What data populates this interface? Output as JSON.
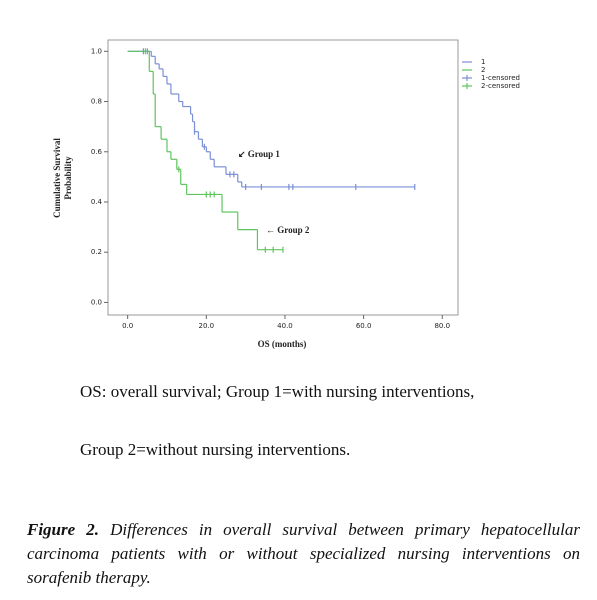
{
  "chart_data": {
    "type": "km-step",
    "xlabel": "OS (months)",
    "ylabel": [
      "Cumulative Survival",
      "Probability"
    ],
    "xlim": [
      -5,
      84
    ],
    "ylim": [
      -0.05,
      1.045
    ],
    "xticks": [
      {
        "value": 0,
        "label": "0.0"
      },
      {
        "value": 20,
        "label": "20.0"
      },
      {
        "value": 40,
        "label": "40.0"
      },
      {
        "value": 60,
        "label": "60.0"
      },
      {
        "value": 80,
        "label": "80.0"
      }
    ],
    "yticks": [
      {
        "value": 0,
        "label": "0.0"
      },
      {
        "value": 0.2,
        "label": "0.2"
      },
      {
        "value": 0.4,
        "label": "0.4"
      },
      {
        "value": 0.6,
        "label": "0.6"
      },
      {
        "value": 0.8,
        "label": "0.8"
      },
      {
        "value": 1,
        "label": "1.0"
      }
    ],
    "series": [
      {
        "name": "1",
        "color": "#7b8fd6",
        "kind": "step",
        "x": [
          0,
          6,
          7,
          8,
          9,
          10,
          11,
          13,
          14,
          16,
          16.5,
          17,
          18,
          19,
          20,
          21,
          22,
          25,
          28,
          29,
          73
        ],
        "values": [
          1,
          0.98,
          0.95,
          0.93,
          0.9,
          0.87,
          0.83,
          0.8,
          0.78,
          0.75,
          0.72,
          0.68,
          0.65,
          0.62,
          0.6,
          0.57,
          0.54,
          0.51,
          0.48,
          0.46,
          0.46
        ]
      },
      {
        "name": "2",
        "color": "#5fc45f",
        "kind": "step",
        "x": [
          0,
          5.5,
          6.5,
          7,
          8.5,
          10,
          11,
          12.5,
          13.5,
          15,
          24,
          28,
          33,
          39.5
        ],
        "values": [
          1,
          0.92,
          0.83,
          0.7,
          0.65,
          0.6,
          0.57,
          0.53,
          0.47,
          0.43,
          0.36,
          0.29,
          0.21,
          0.21
        ]
      },
      {
        "name": "1-censored",
        "color": "#7b8fd6",
        "kind": "censor",
        "x": [
          4,
          5,
          17,
          19.5,
          26,
          27,
          30,
          34,
          41,
          42,
          58,
          73
        ],
        "values": [
          1,
          1,
          0.68,
          0.62,
          0.51,
          0.51,
          0.46,
          0.46,
          0.46,
          0.46,
          0.46,
          0.46
        ]
      },
      {
        "name": "2-censored",
        "color": "#5fc45f",
        "kind": "censor",
        "x": [
          4.5,
          13,
          20,
          21,
          22,
          35,
          37,
          39.5
        ],
        "values": [
          1,
          0.53,
          0.43,
          0.43,
          0.43,
          0.21,
          0.21,
          0.21
        ]
      }
    ],
    "annotations": [
      "↙ Group 1",
      "← Group 2"
    ]
  },
  "notes": [
    "OS: overall survival; Group 1=with nursing interventions,",
    "Group 2=without nursing interventions."
  ],
  "caption": {
    "label": "Figure 2.",
    "text": "Differences in overall survival between primary hepatocellular carcinoma patients with or without specialized nursing interventions on sorafenib therapy."
  }
}
